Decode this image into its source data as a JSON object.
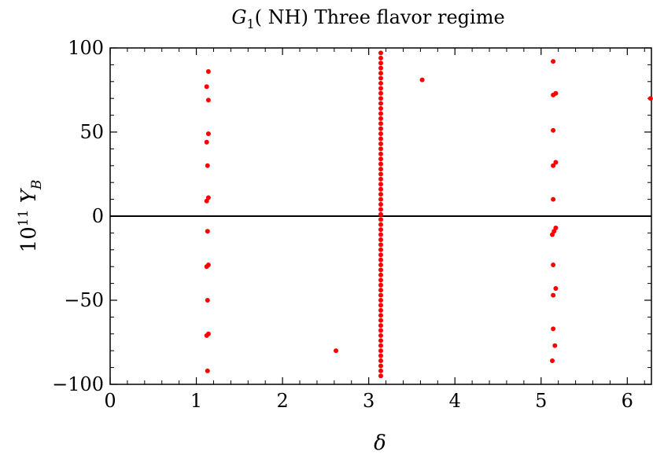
{
  "chart_data": {
    "type": "scatter",
    "title": "G₁(NH) Three flavor regime",
    "xlabel": "δ",
    "ylabel": "10¹¹ Y_B",
    "xlim": [
      0,
      6.28
    ],
    "ylim": [
      -100,
      100
    ],
    "xticks": [
      0,
      1,
      2,
      3,
      4,
      5,
      6
    ],
    "yticks": [
      -100,
      -50,
      0,
      50,
      100
    ],
    "ytick_labels": [
      "−100",
      "−50",
      "0",
      "50",
      "100"
    ],
    "grid": false,
    "zero_line": true,
    "marker_color": "#ff0000",
    "series": [
      {
        "points": [
          [
            1.14,
            86
          ],
          [
            1.12,
            77
          ],
          [
            1.14,
            69
          ],
          [
            1.14,
            49
          ],
          [
            1.12,
            44
          ],
          [
            1.13,
            30
          ],
          [
            1.14,
            11
          ],
          [
            1.12,
            9
          ],
          [
            1.13,
            -9
          ],
          [
            1.14,
            -29
          ],
          [
            1.12,
            -30
          ],
          [
            1.13,
            -50
          ],
          [
            1.14,
            -70
          ],
          [
            1.12,
            -71
          ],
          [
            1.13,
            -92
          ],
          [
            3.14,
            97
          ],
          [
            3.14,
            94
          ],
          [
            3.14,
            91
          ],
          [
            3.14,
            88
          ],
          [
            3.14,
            85
          ],
          [
            3.14,
            82
          ],
          [
            3.14,
            79
          ],
          [
            3.14,
            76
          ],
          [
            3.14,
            73
          ],
          [
            3.14,
            70
          ],
          [
            3.14,
            67
          ],
          [
            3.14,
            64
          ],
          [
            3.14,
            61
          ],
          [
            3.14,
            58
          ],
          [
            3.14,
            55
          ],
          [
            3.14,
            52
          ],
          [
            3.14,
            49
          ],
          [
            3.14,
            46
          ],
          [
            3.14,
            43
          ],
          [
            3.14,
            40
          ],
          [
            3.14,
            37
          ],
          [
            3.14,
            34
          ],
          [
            3.14,
            31
          ],
          [
            3.14,
            28
          ],
          [
            3.14,
            25
          ],
          [
            3.14,
            22
          ],
          [
            3.14,
            19
          ],
          [
            3.14,
            16
          ],
          [
            3.14,
            13
          ],
          [
            3.14,
            10
          ],
          [
            3.14,
            7
          ],
          [
            3.14,
            4
          ],
          [
            3.14,
            1
          ],
          [
            3.14,
            -2
          ],
          [
            3.14,
            -5
          ],
          [
            3.14,
            -8
          ],
          [
            3.14,
            -11
          ],
          [
            3.14,
            -14
          ],
          [
            3.14,
            -17
          ],
          [
            3.14,
            -20
          ],
          [
            3.14,
            -23
          ],
          [
            3.14,
            -26
          ],
          [
            3.14,
            -29
          ],
          [
            3.14,
            -32
          ],
          [
            3.14,
            -35
          ],
          [
            3.14,
            -38
          ],
          [
            3.14,
            -41
          ],
          [
            3.14,
            -44
          ],
          [
            3.14,
            -47
          ],
          [
            3.14,
            -50
          ],
          [
            3.14,
            -53
          ],
          [
            3.14,
            -56
          ],
          [
            3.14,
            -59
          ],
          [
            3.14,
            -62
          ],
          [
            3.14,
            -65
          ],
          [
            3.14,
            -68
          ],
          [
            3.14,
            -71
          ],
          [
            3.14,
            -74
          ],
          [
            3.14,
            -77
          ],
          [
            3.14,
            -80
          ],
          [
            3.14,
            -83
          ],
          [
            3.14,
            -86
          ],
          [
            3.14,
            -89
          ],
          [
            3.14,
            -92
          ],
          [
            3.14,
            -95
          ],
          [
            3.62,
            81
          ],
          [
            2.62,
            -80
          ],
          [
            5.14,
            92
          ],
          [
            5.14,
            72
          ],
          [
            5.17,
            73
          ],
          [
            5.14,
            51
          ],
          [
            5.17,
            32
          ],
          [
            5.14,
            30
          ],
          [
            5.14,
            10
          ],
          [
            5.17,
            -7
          ],
          [
            5.15,
            -9
          ],
          [
            5.13,
            -11
          ],
          [
            5.14,
            -29
          ],
          [
            5.17,
            -43
          ],
          [
            5.14,
            -47
          ],
          [
            5.14,
            -67
          ],
          [
            5.16,
            -77
          ],
          [
            5.13,
            -86
          ],
          [
            6.27,
            70
          ]
        ]
      }
    ]
  }
}
